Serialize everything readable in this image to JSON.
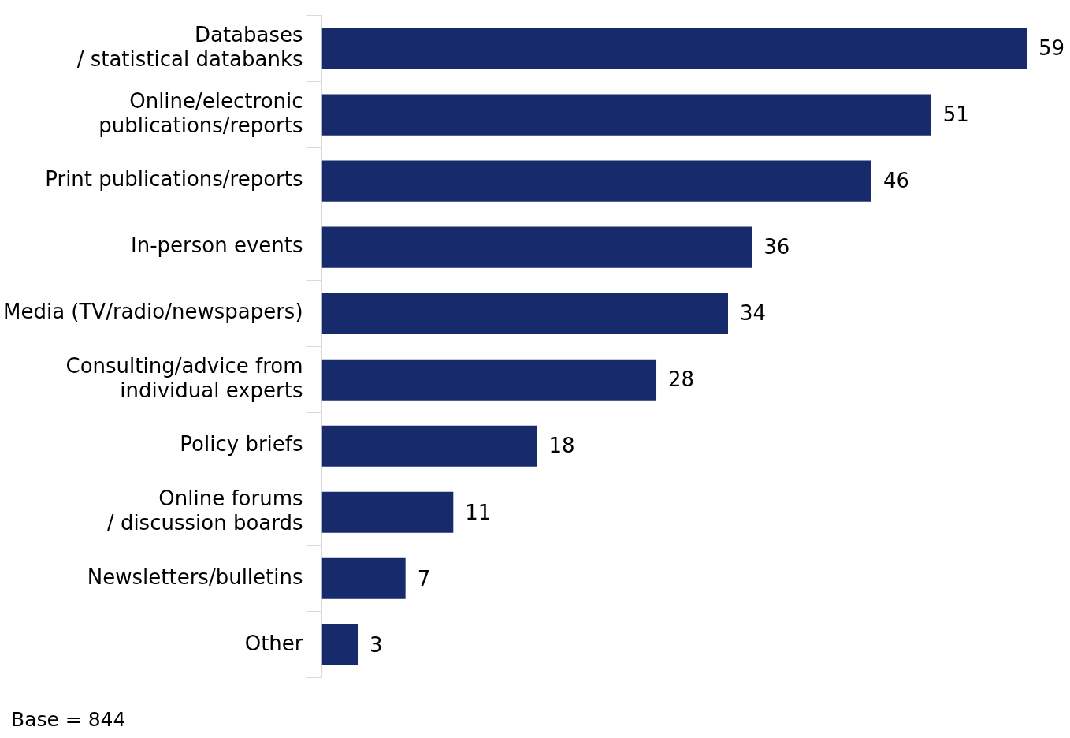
{
  "chart_data": {
    "type": "bar",
    "orientation": "horizontal",
    "categories": [
      "Databases\n/ statistical databanks",
      "Online/electronic\npublications/reports",
      "Print publications/reports",
      "In-person events",
      "Media (TV/radio/newspapers)",
      "Consulting/advice from\nindividual experts",
      "Policy briefs",
      "Online forums\n/ discussion boards",
      "Newsletters/bulletins",
      "Other"
    ],
    "values": [
      59,
      51,
      46,
      36,
      34,
      28,
      18,
      11,
      7,
      3
    ],
    "color": "#172a6b",
    "data_labels": true,
    "legend": false,
    "annotations": [
      "Base = 844"
    ]
  }
}
